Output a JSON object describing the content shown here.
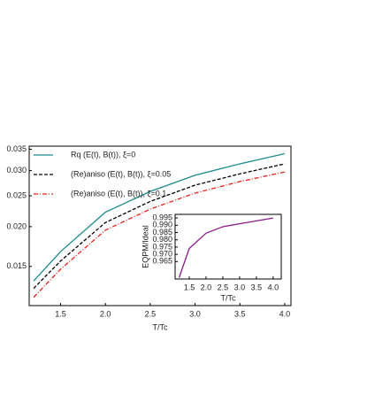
{
  "chart_data": [
    {
      "type": "line",
      "xlabel": "T/Tc",
      "x": [
        1.2,
        1.5,
        2.0,
        2.5,
        3.0,
        3.5,
        4.0
      ],
      "series": [
        {
          "name": "Rq (E(t), B(t)), ξ=0",
          "color": "#1a8a8a",
          "dash": "solid",
          "values": [
            0.0135,
            0.0167,
            0.0222,
            0.0258,
            0.029,
            0.0315,
            0.0339
          ]
        },
        {
          "name": "(Re)aniso (E(t), B(t)), ξ=0.05",
          "color": "#000000",
          "dash": "dashed",
          "values": [
            0.0128,
            0.0156,
            0.0206,
            0.024,
            0.027,
            0.0293,
            0.0315
          ]
        },
        {
          "name": "(Re)aniso (E(t), B(t)), ξ=0.1",
          "color": "#e8201a",
          "dash": "dashdot",
          "values": [
            0.012,
            0.0147,
            0.0195,
            0.0227,
            0.0255,
            0.0277,
            0.0297
          ]
        }
      ],
      "xlim": [
        1.15,
        4.07
      ],
      "ylim": [
        0.0113,
        0.0358
      ],
      "log_y": true,
      "xticks": [
        1.5,
        {
          "value": 2,
          "label": "2.0"
        },
        2.5,
        {
          "value": 3,
          "label": "3.0"
        },
        3.5,
        {
          "value": 4,
          "label": "4.0"
        }
      ],
      "yticks": [
        0.015,
        {
          "value": 0.02,
          "label": "0.020"
        },
        0.025,
        {
          "value": 0.03,
          "label": "0.030"
        },
        0.035
      ],
      "legend": "upper left"
    },
    {
      "type": "line",
      "xlabel": "T/Tc",
      "ylabel": "EQPM/Ideal",
      "x": [
        1.2,
        1.5,
        2.0,
        2.5,
        3.0,
        3.5,
        4.0
      ],
      "series": [
        {
          "color": "#8b1a8b",
          "dash": "solid",
          "values": [
            0.954,
            0.974,
            0.9845,
            0.989,
            0.991,
            0.993,
            0.995
          ]
        }
      ],
      "xlim": [
        1.08,
        4.24
      ],
      "ylim": [
        0.953,
        0.9975
      ],
      "log_y": false,
      "xticks": [
        1.5,
        {
          "value": 2,
          "label": "2.0"
        },
        2.5,
        {
          "value": 3,
          "label": "3.0"
        },
        3.5,
        {
          "value": 4,
          "label": "4.0"
        }
      ],
      "yticks": [
        0.965,
        {
          "value": 0.97,
          "label": "0.970"
        },
        0.975,
        {
          "value": 0.98,
          "label": "0.980"
        },
        0.985,
        {
          "value": 0.99,
          "label": "0.990"
        },
        0.995
      ]
    }
  ]
}
